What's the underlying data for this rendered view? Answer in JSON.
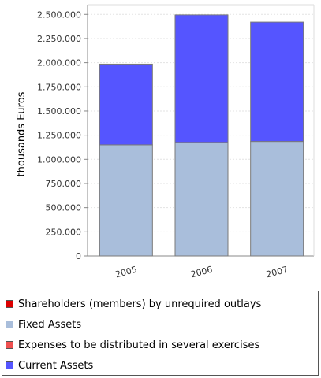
{
  "chart_data": {
    "type": "bar",
    "stacked": true,
    "categories": [
      "2005",
      "2006",
      "2007"
    ],
    "series": [
      {
        "name": "Shareholders (members) by unrequired outlays",
        "color": "#dd0000",
        "values": [
          0,
          0,
          0
        ]
      },
      {
        "name": "Fixed Assets",
        "color": "#a9bedb",
        "values": [
          1150000,
          1175000,
          1185000
        ]
      },
      {
        "name": "Expenses to be distributed in several exercises",
        "color": "#f05050",
        "values": [
          0,
          0,
          0
        ]
      },
      {
        "name": "Current Assets",
        "color": "#5555ff",
        "values": [
          835000,
          1320000,
          1235000
        ]
      }
    ],
    "ylabel": "thousands Euros",
    "ylim": [
      0,
      2600000
    ],
    "yticks": [
      0,
      250000,
      500000,
      750000,
      1000000,
      1250000,
      1500000,
      1750000,
      2000000,
      2250000,
      2500000
    ],
    "ytick_labels": [
      "0",
      "250.000",
      "500.000",
      "750.000",
      "1.000.000",
      "1.250.000",
      "1.500.000",
      "1.750.000",
      "2.000.000",
      "2.250.000",
      "2.500.000"
    ],
    "grid": true,
    "legend_placement": "bottom"
  }
}
